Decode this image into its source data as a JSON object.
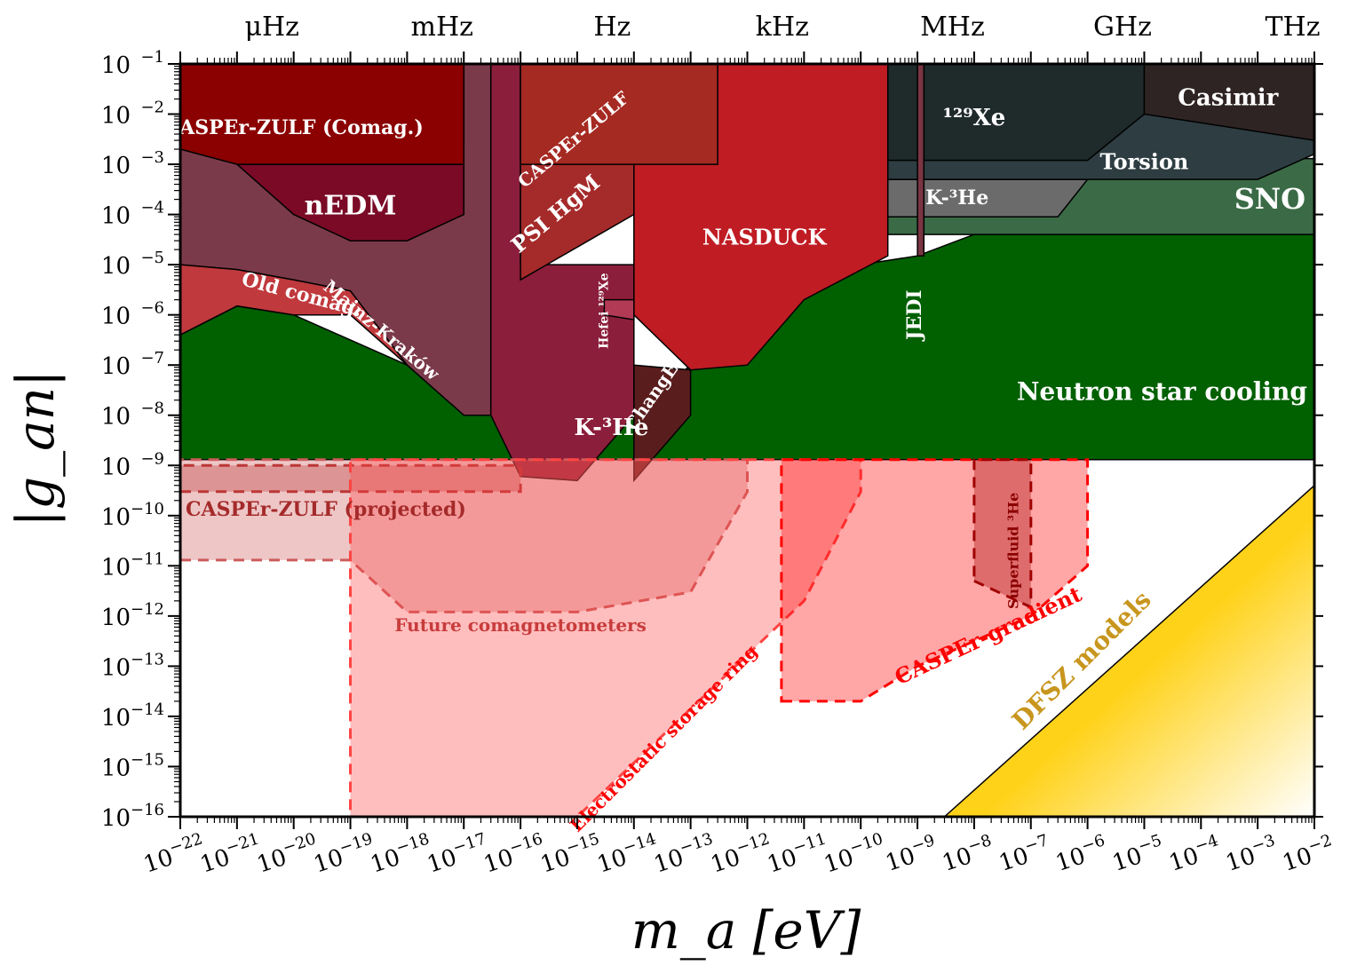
{
  "chart_data": {
    "type": "area",
    "title": "",
    "xlabel": "m_a [eV]",
    "ylabel": "|g_an|",
    "x_scale": "log",
    "y_scale": "log",
    "xlim": [
      1e-22,
      0.01
    ],
    "ylim": [
      1e-16,
      0.1
    ],
    "x_tick_exponents": [
      -22,
      -21,
      -20,
      -19,
      -18,
      -17,
      -16,
      -15,
      -14,
      -13,
      -12,
      -11,
      -10,
      -9,
      -8,
      -7,
      -6,
      -5,
      -4,
      -3,
      -2
    ],
    "y_tick_exponents": [
      -16,
      -15,
      -14,
      -13,
      -12,
      -11,
      -10,
      -9,
      -8,
      -7,
      -6,
      -5,
      -4,
      -3,
      -2,
      -1
    ],
    "tick_base": "10",
    "top_axis": {
      "labels": [
        {
          "text": "μHz",
          "x": 4.136e-21
        },
        {
          "text": "mHz",
          "x": 4.136e-18
        },
        {
          "text": "Hz",
          "x": 4.136e-15
        },
        {
          "text": "kHz",
          "x": 4.136e-12
        },
        {
          "text": "MHz",
          "x": 4.136e-09
        },
        {
          "text": "GHz",
          "x": 4.136e-06
        },
        {
          "text": "THz",
          "x": 0.004136
        }
      ]
    },
    "series": [
      {
        "name": "Neutron star cooling",
        "color": "#016000",
        "label": "Neutron star cooling",
        "points": [
          [
            1e-22,
            1.3e-09
          ],
          [
            0.01,
            1.3e-09
          ],
          [
            0.01,
            4e-05
          ],
          [
            1e-08,
            4e-05
          ],
          [
            1e-09,
            1.5e-05
          ],
          [
            1e-10,
            1e-05
          ],
          [
            1e-12,
            1e-06
          ],
          [
            1e-14,
            1e-08
          ],
          [
            1e-16,
            1e-08
          ],
          [
            1e-18,
            1e-07
          ],
          [
            1e-20,
            1e-06
          ],
          [
            1e-21,
            1.5e-06
          ],
          [
            1e-22,
            4e-07
          ]
        ]
      },
      {
        "name": "SNO",
        "color": "#3a6b46",
        "label": "SNO",
        "points": [
          [
            3e-10,
            4e-05
          ],
          [
            0.01,
            4e-05
          ],
          [
            0.01,
            0.0013
          ],
          [
            3e-10,
            0.0013
          ]
        ]
      },
      {
        "name": "K-3He (high mass)",
        "color": "#6b6b6b",
        "label": "K-³He",
        "points": [
          [
            3e-10,
            9e-05
          ],
          [
            3e-07,
            9e-05
          ],
          [
            1e-06,
            0.0005
          ],
          [
            1e-06,
            0.0005
          ],
          [
            3e-10,
            0.0005
          ]
        ]
      },
      {
        "name": "Torsion",
        "color": "#2e3d42",
        "label": "Torsion",
        "points": [
          [
            3e-10,
            0.0005
          ],
          [
            1e-06,
            0.0005
          ],
          [
            0.001,
            0.0005
          ],
          [
            0.01,
            0.0016
          ],
          [
            0.01,
            0.1
          ],
          [
            3e-10,
            0.1
          ]
        ]
      },
      {
        "name": "129Xe",
        "color": "#1f2a2b",
        "label": "¹²⁹Xe",
        "points": [
          [
            3e-10,
            0.0012
          ],
          [
            1e-06,
            0.0012
          ],
          [
            1e-05,
            0.01
          ],
          [
            1e-05,
            0.1
          ],
          [
            3e-10,
            0.1
          ]
        ]
      },
      {
        "name": "Casimir",
        "color": "#2f2424",
        "label": "Casimir",
        "points": [
          [
            1e-05,
            0.01
          ],
          [
            0.01,
            0.003
          ],
          [
            0.01,
            0.1
          ],
          [
            1e-05,
            0.1
          ]
        ]
      },
      {
        "name": "NASDUCK",
        "color": "#c01c24",
        "label": "NASDUCK",
        "points": [
          [
            1e-14,
            0.1
          ],
          [
            3e-10,
            0.1
          ],
          [
            3e-10,
            1.5e-05
          ],
          [
            1e-11,
            2e-06
          ],
          [
            1e-12,
            1e-07
          ],
          [
            1e-13,
            8e-08
          ],
          [
            1e-14,
            1e-06
          ],
          [
            1e-14,
            0.0001
          ]
        ]
      },
      {
        "name": "JEDI",
        "color": "#7a3542",
        "label": "JEDI",
        "points": [
          [
            1e-09,
            1.5e-05
          ],
          [
            1.3e-09,
            1.5e-05
          ],
          [
            1.3e-09,
            0.1
          ],
          [
            1e-09,
            0.1
          ]
        ]
      },
      {
        "name": "Mainz-Kraków",
        "color": "#7b3a4a",
        "label": "Mainz-Kraków",
        "points": [
          [
            1e-22,
            0.0025
          ],
          [
            1e-17,
            0.0025
          ],
          [
            1e-17,
            0.1
          ],
          [
            3e-17,
            0.1
          ],
          [
            3e-17,
            1e-08
          ],
          [
            1e-17,
            1e-08
          ],
          [
            1e-18,
            1e-07
          ],
          [
            1e-19,
            3e-06
          ],
          [
            1e-20,
            5e-06
          ],
          [
            1e-21,
            8e-06
          ],
          [
            1e-22,
            1e-05
          ]
        ]
      },
      {
        "name": "Old comag.",
        "color": "#c0393d",
        "label": "Old comag.",
        "points": [
          [
            1e-22,
            1e-05
          ],
          [
            1e-21,
            8e-06
          ],
          [
            1e-20,
            5e-06
          ],
          [
            1e-19,
            3e-06
          ],
          [
            1e-18,
            1e-07
          ],
          [
            1e-19,
            1e-06
          ],
          [
            1e-20,
            1e-06
          ],
          [
            1e-21,
            1.5e-06
          ],
          [
            1e-22,
            4e-07
          ]
        ]
      },
      {
        "name": "nEDM",
        "color": "#7a0a26",
        "label": "nEDM",
        "points": [
          [
            1e-21,
            0.001
          ],
          [
            1e-17,
            0.001
          ],
          [
            1e-17,
            0.0001
          ],
          [
            1e-18,
            3e-05
          ],
          [
            1e-19,
            3e-05
          ],
          [
            1e-20,
            0.0001
          ],
          [
            1e-21,
            0.001
          ]
        ]
      },
      {
        "name": "CASPEr-ZULF (Comag.)",
        "color": "#8b0000",
        "label": "CASPEr-ZULF (Comag.)",
        "points": [
          [
            1e-22,
            0.1
          ],
          [
            1e-17,
            0.1
          ],
          [
            1e-17,
            0.001
          ],
          [
            1e-19,
            0.001
          ],
          [
            1e-21,
            0.001
          ],
          [
            1e-22,
            0.002
          ]
        ]
      },
      {
        "name": "K-3He",
        "color": "#8b1e3a",
        "label": "K-³He",
        "points": [
          [
            3e-17,
            0.1
          ],
          [
            1e-16,
            0.1
          ],
          [
            1e-16,
            1e-05
          ],
          [
            1e-14,
            1e-05
          ],
          [
            1e-14,
            1e-08
          ],
          [
            1e-15,
            5e-10
          ],
          [
            1e-16,
            6e-10
          ],
          [
            3e-17,
            1e-08
          ]
        ]
      },
      {
        "name": "PSI HgM",
        "color": "#a52a2a",
        "label": "PSI HgM",
        "points": [
          [
            1e-16,
            0.1
          ],
          [
            1e-14,
            0.1
          ],
          [
            1e-14,
            0.0001
          ],
          [
            1e-16,
            5e-06
          ]
        ]
      },
      {
        "name": "CASPEr-ZULF",
        "color": "#a52a22",
        "label": "CASPEr-ZULF",
        "points": [
          [
            1e-16,
            0.1
          ],
          [
            3e-13,
            0.1
          ],
          [
            3e-13,
            0.001
          ],
          [
            1e-16,
            0.001
          ]
        ]
      },
      {
        "name": "Hefei 129Xe",
        "color": "#b23a55",
        "label": "Hefei ¹²⁹Xe",
        "points": [
          [
            3e-15,
            2e-06
          ],
          [
            1e-14,
            2e-06
          ],
          [
            1e-14,
            8e-07
          ],
          [
            3e-15,
            1e-06
          ]
        ]
      },
      {
        "name": "ChangE",
        "color": "#5a1d1d",
        "label": "ChangE",
        "points": [
          [
            1e-14,
            1e-07
          ],
          [
            1e-13,
            8e-08
          ],
          [
            1e-13,
            1e-08
          ],
          [
            1e-14,
            5e-10
          ]
        ]
      },
      {
        "name": "CASPEr-ZULF (projected)",
        "color": "#b22222",
        "label": "CASPEr-ZULF (projected)",
        "dashed": true,
        "points": [
          [
            1e-22,
            3e-10
          ],
          [
            1e-16,
            3e-10
          ],
          [
            1e-16,
            1e-09
          ],
          [
            1e-22,
            1e-09
          ]
        ]
      },
      {
        "name": "Future comagnetometers",
        "color": "#cd5c5c",
        "label": "Future comagnetometers",
        "dashed": true,
        "points": [
          [
            1e-22,
            1.3e-11
          ],
          [
            1e-19,
            1.3e-11
          ],
          [
            1e-18,
            1.2e-12
          ],
          [
            1e-15,
            1.2e-12
          ],
          [
            1e-13,
            3e-12
          ],
          [
            1e-12,
            3e-10
          ],
          [
            1e-12,
            1.3e-09
          ],
          [
            1e-22,
            1.3e-09
          ]
        ]
      },
      {
        "name": "Electrostatic storage ring",
        "color": "#ff4444",
        "label": "Electrostatic storage ring",
        "dashed": true,
        "points": [
          [
            1e-19,
            1e-16
          ],
          [
            1e-15,
            1e-16
          ],
          [
            1e-11,
            2e-12
          ],
          [
            1e-10,
            3e-10
          ],
          [
            1e-10,
            1.3e-09
          ],
          [
            1e-19,
            1.3e-09
          ]
        ]
      },
      {
        "name": "CASPEr-gradient",
        "color": "#ff0000",
        "label": "CASPEr-gradient",
        "dashed": true,
        "points": [
          [
            4e-12,
            2e-14
          ],
          [
            1e-10,
            2e-14
          ],
          [
            1e-09,
            1e-13
          ],
          [
            1e-07,
            1e-12
          ],
          [
            1e-06,
            1e-11
          ],
          [
            1e-06,
            1.3e-09
          ],
          [
            4e-12,
            1.3e-09
          ]
        ]
      },
      {
        "name": "Superfluid 3He",
        "color": "#a00000",
        "label": "Superfluid ³He",
        "dashed": true,
        "points": [
          [
            1e-08,
            5e-12
          ],
          [
            1e-07,
            1.5e-12
          ],
          [
            1e-07,
            1.3e-09
          ],
          [
            1e-08,
            1.3e-09
          ]
        ]
      },
      {
        "name": "DFSZ models",
        "color": "#ffd21a",
        "label": "DFSZ models",
        "points": [
          [
            3e-09,
            1e-16
          ],
          [
            0.01,
            1e-16
          ],
          [
            0.01,
            4e-10
          ]
        ]
      }
    ],
    "legend": "none",
    "grid": false
  }
}
